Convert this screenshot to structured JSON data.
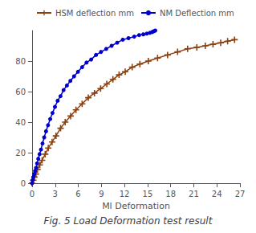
{
  "chart_data": {
    "type": "line",
    "title": "Fig. 5 Load Deformation test result",
    "xlabel": "Ml Deformation",
    "xlim": [
      0,
      27
    ],
    "ylim": [
      0,
      100
    ],
    "xticks": [
      0,
      3,
      6,
      9,
      12,
      15,
      18,
      21,
      24,
      27
    ],
    "yticks": [
      0,
      20,
      40,
      60,
      80
    ],
    "grid": false,
    "legend": "upper left",
    "series": [
      {
        "name": "HSM deflection mm",
        "color": "#8B4010",
        "marker": "plus",
        "x": [
          0.0,
          0.15,
          0.3,
          0.5,
          0.7,
          1.0,
          1.3,
          1.7,
          2.1,
          2.6,
          3.1,
          3.7,
          4.3,
          5.0,
          5.7,
          6.5,
          7.3,
          8.1,
          8.9,
          9.7,
          10.5,
          11.3,
          12.1,
          13.0,
          14.0,
          15.1,
          16.3,
          17.6,
          18.9,
          20.2,
          21.4,
          22.5,
          23.5,
          24.5,
          25.4,
          26.3
        ],
        "values": [
          0,
          2,
          4,
          6,
          9,
          12,
          15,
          19,
          23,
          27,
          31,
          36,
          40,
          44,
          48,
          52,
          56,
          59,
          62,
          65,
          68,
          71,
          73,
          76,
          78,
          80,
          82,
          84,
          86,
          88,
          89,
          90,
          91,
          92,
          93,
          94
        ]
      },
      {
        "name": "NM Deflection mm",
        "color": "#0000CC",
        "marker": "circle",
        "x": [
          0.0,
          0.08,
          0.17,
          0.27,
          0.38,
          0.51,
          0.65,
          0.8,
          0.97,
          1.15,
          1.35,
          1.57,
          1.81,
          2.07,
          2.35,
          2.65,
          2.97,
          3.32,
          3.69,
          4.09,
          4.52,
          4.97,
          5.45,
          5.96,
          6.5,
          7.07,
          7.67,
          8.3,
          8.95,
          9.63,
          10.33,
          11.05,
          11.78,
          12.52,
          13.26,
          13.9,
          14.45,
          14.9,
          15.3,
          15.6,
          15.8,
          16.0
        ],
        "values": [
          0,
          2,
          4,
          6,
          8,
          10,
          13,
          16,
          19,
          22,
          26,
          30,
          34,
          38,
          42,
          46,
          50,
          54,
          57,
          61,
          64,
          67,
          70,
          73,
          76,
          79,
          81,
          84,
          86,
          88,
          90,
          92,
          94,
          95,
          96,
          97,
          97.5,
          98,
          98.5,
          99,
          99.5,
          100
        ]
      }
    ]
  }
}
